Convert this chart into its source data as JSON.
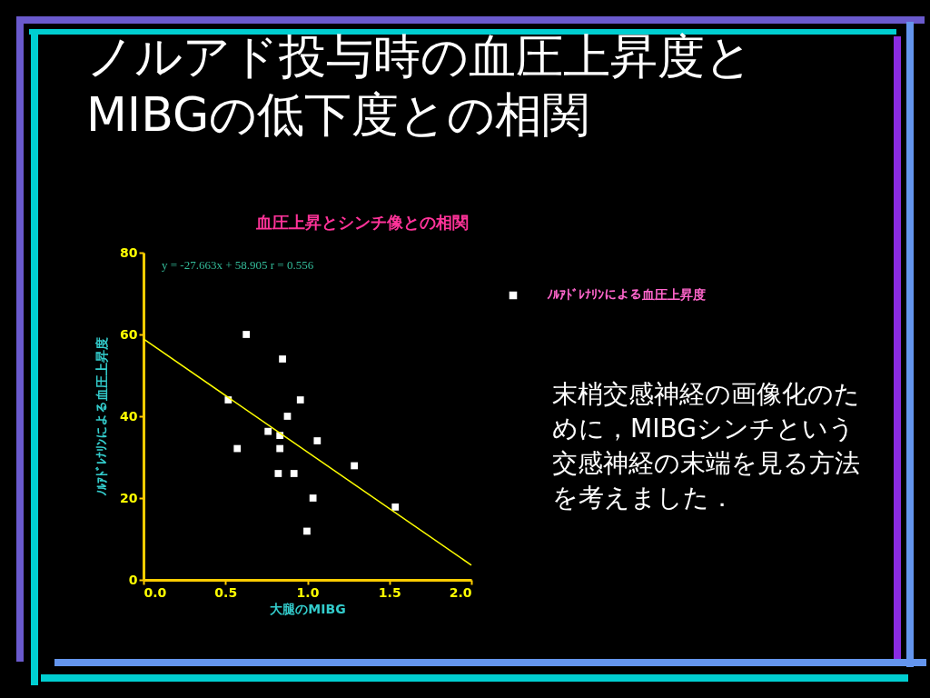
{
  "chart_data": {
    "type": "scatter",
    "title": "ノルアド投与時の血圧上昇度とMIBGの低下度との相関",
    "subtitle": "血圧上昇とシンチ像との相関",
    "xlabel": "大腿のMIBG",
    "ylabel": "ﾉﾙｱﾄﾞﾚﾅﾘﾝによる血圧上昇度",
    "annotations": [
      "y =  -27.663x + 58.905   r = 0.556",
      "末梢交感神経の画像化のために，MIBGシンチという交感神経の末端を見る方法を考えました．"
    ],
    "xlim": [
      0,
      2
    ],
    "ylim": [
      0,
      80
    ],
    "xticks": [
      {
        "value": 0,
        "label": "0.0"
      },
      {
        "value": 0.5,
        "label": "0.5"
      },
      {
        "value": 1,
        "label": "1.0"
      },
      {
        "value": 1.5,
        "label": "1.5"
      },
      {
        "value": 2,
        "label": "2.0"
      }
    ],
    "yticks": [
      0,
      20,
      40,
      60,
      80
    ],
    "grid": false,
    "legend": "right",
    "marker": "square",
    "series": [
      {
        "name": "ﾉﾙｱﾄﾞﾚﾅﾘﾝによる血圧上昇度",
        "color": "#ffffff",
        "x": [
          0.627,
          0.848,
          0.517,
          0.957,
          0.878,
          0.76,
          0.832,
          1.06,
          0.572,
          0.832,
          1.286,
          0.822,
          0.918,
          1.034,
          1.536,
          0.997
        ],
        "values": [
          60,
          54,
          44,
          44,
          40,
          36.3,
          35.3,
          34,
          32.1,
          32.1,
          27.9,
          26,
          26,
          20,
          17.8,
          11.9
        ]
      },
      {
        "type": "line",
        "color": "#ffff00",
        "x": [
          0,
          2
        ],
        "values": [
          58.9,
          3.6
        ],
        "line_style": "solid",
        "marker": "none"
      }
    ]
  }
}
